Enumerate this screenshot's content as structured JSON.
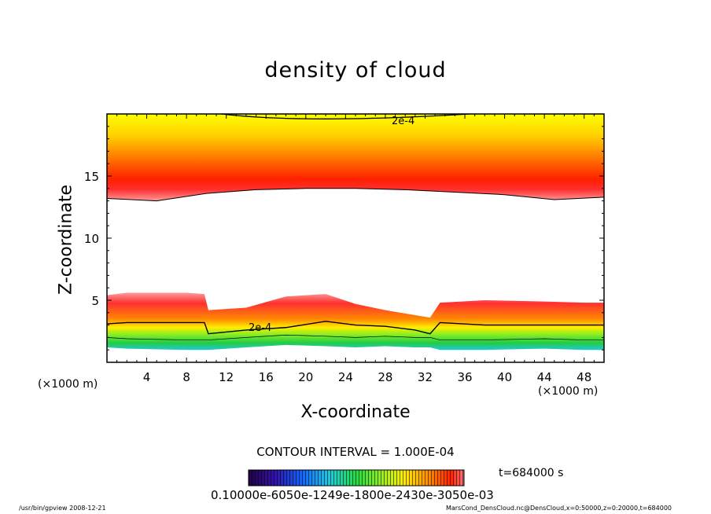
{
  "chart_data": {
    "type": "heatmap",
    "title": "density of cloud",
    "xlabel": "X-coordinate",
    "ylabel": "Z-coordinate",
    "x_unit_label": "(×1000 m)",
    "xlim": [
      0,
      50
    ],
    "ylim": [
      0,
      20
    ],
    "x_ticks": [
      4,
      8,
      12,
      16,
      20,
      24,
      28,
      32,
      36,
      40,
      44,
      48
    ],
    "y_ticks": [
      5,
      10,
      15
    ],
    "contour_interval_text": "CONTOUR INTERVAL = 1.000E-04",
    "contour_labels": [
      "2e-4",
      "2e-4"
    ],
    "time_text": "t=684000 s",
    "colorbar_labels_text": "0.10000e-6050e-1249e-1800e-2430e-3050e-03",
    "cloud_layers": [
      {
        "name": "upper",
        "x": [
          0,
          5,
          10,
          15,
          20,
          25,
          30,
          35,
          40,
          45,
          50
        ],
        "bottom": [
          13.2,
          13.0,
          13.6,
          13.9,
          14.0,
          14.0,
          13.9,
          13.7,
          13.5,
          13.1,
          13.3
        ],
        "peak": [
          15.4,
          15.3,
          15.6,
          15.8,
          15.8,
          15.8,
          15.7,
          15.6,
          15.5,
          15.3,
          15.5
        ]
      },
      {
        "name": "lower",
        "x": [
          0,
          2,
          8,
          9.8,
          10.2,
          14,
          18,
          22,
          25,
          28,
          31,
          32.5,
          33.5,
          38,
          44,
          48,
          50
        ],
        "top": [
          5.4,
          5.6,
          5.6,
          5.5,
          4.2,
          4.4,
          5.3,
          5.5,
          4.7,
          4.2,
          3.8,
          3.6,
          4.8,
          5.0,
          4.9,
          4.8,
          4.8
        ],
        "contour_2e4": [
          3.1,
          3.2,
          3.2,
          3.2,
          2.3,
          2.6,
          2.8,
          3.3,
          3.0,
          2.9,
          2.6,
          2.3,
          3.2,
          3.0,
          3.0,
          3.0,
          3.0
        ],
        "bottom": [
          1.2,
          1.1,
          1.0,
          1.0,
          1.0,
          1.2,
          1.4,
          1.3,
          1.2,
          1.3,
          1.2,
          1.2,
          1.0,
          1.0,
          1.1,
          1.0,
          1.0
        ]
      }
    ],
    "colors": {
      "upper_top": "#ffff00",
      "upper_peak": "#ff0000",
      "lower_top": "#ff3a2a",
      "lower_green": "#22dd33",
      "lower_blue": "#1144ff",
      "lower_purple": "#6a00aa"
    }
  },
  "footer": {
    "left": "/usr/bin/gpview   2008-12-21",
    "right": "MarsCond_DensCloud.nc@DensCloud,x=0:50000,z=0:20000,t=684000"
  }
}
